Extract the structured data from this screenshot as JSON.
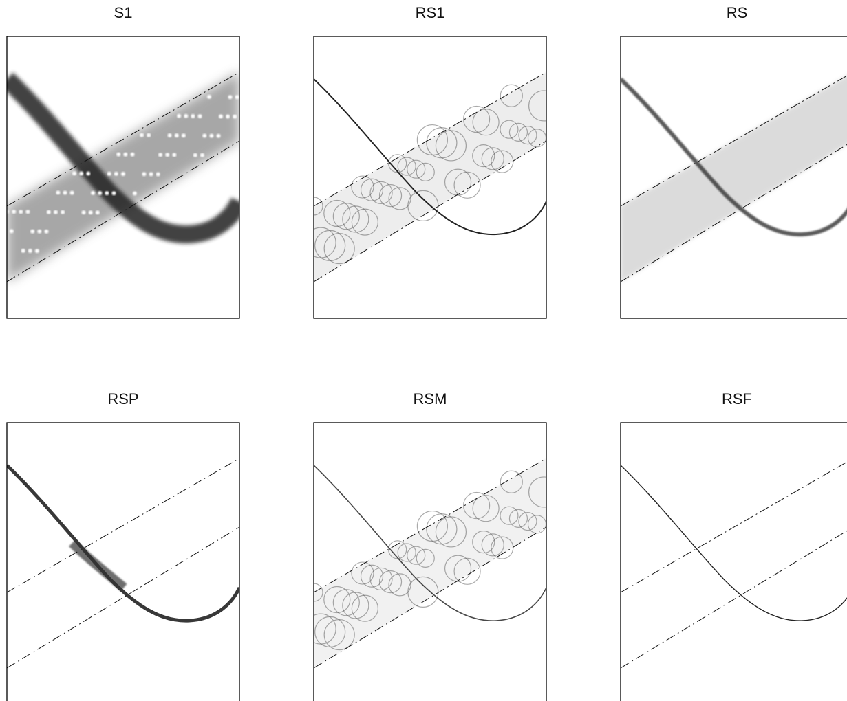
{
  "panels": [
    {
      "title": "S1"
    },
    {
      "title": "RS1"
    },
    {
      "title": "RS"
    },
    {
      "title": "RSP"
    },
    {
      "title": "RSM"
    },
    {
      "title": "RSF"
    }
  ]
}
